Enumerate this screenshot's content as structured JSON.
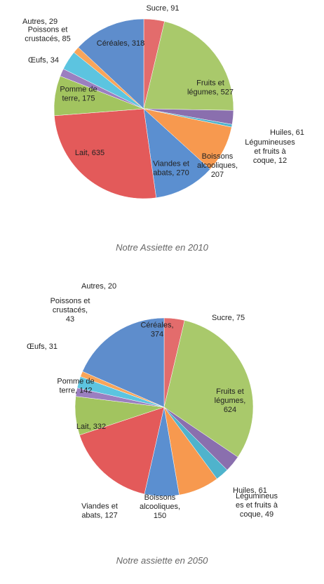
{
  "chart_data": [
    {
      "type": "pie",
      "title": "Notre Assiette en 2010",
      "values": [
        91,
        527,
        61,
        12,
        207,
        270,
        635,
        175,
        34,
        85,
        29,
        318
      ],
      "value_labels": [
        "Sucre, 91",
        "Fruits et\nlégumes, 527",
        "Huiles, 61",
        "Légumineuses\net fruits à\ncoque, 12",
        "Boissons\nalcooliques,\n207",
        "Viandes et\nabats, 270",
        "Lait, 635",
        "Pomme de\nterre, 175",
        "Œufs, 34",
        "Poissons et\ncrustacés, 85",
        "Autres, 29",
        "Céréales, 318"
      ],
      "colors": [
        "#e36c6c",
        "#a9c96b",
        "#8a6fae",
        "#4fb3cc",
        "#f7994f",
        "#5b8fd0",
        "#e35a5a",
        "#a2c45f",
        "#9b7fc0",
        "#5cc4e0",
        "#f8a55a",
        "#5e8dcc"
      ]
    },
    {
      "type": "pie",
      "title": "Notre assiette en 2050",
      "values": [
        75,
        624,
        61,
        49,
        150,
        127,
        332,
        142,
        31,
        43,
        20,
        374
      ],
      "value_labels": [
        "Sucre, 75",
        "Fruits et\nlégumes,\n624",
        "Huiles, 61",
        "Légumineus\nes et fruits à\ncoque, 49",
        "Boissons\nalcooliques,\n150",
        "Viandes et\nabats, 127",
        "Lait, 332",
        "Pomme de\nterre, 142",
        "Œufs, 31",
        "Poissons et\ncrustacés,\n43",
        "Autres, 20",
        "Céréales,\n374"
      ],
      "colors": [
        "#e36c6c",
        "#a9c96b",
        "#8a6fae",
        "#4fb3cc",
        "#f7994f",
        "#5b8fd0",
        "#e35a5a",
        "#a2c45f",
        "#9b7fc0",
        "#5cc4e0",
        "#f8a55a",
        "#5e8dcc"
      ]
    }
  ]
}
